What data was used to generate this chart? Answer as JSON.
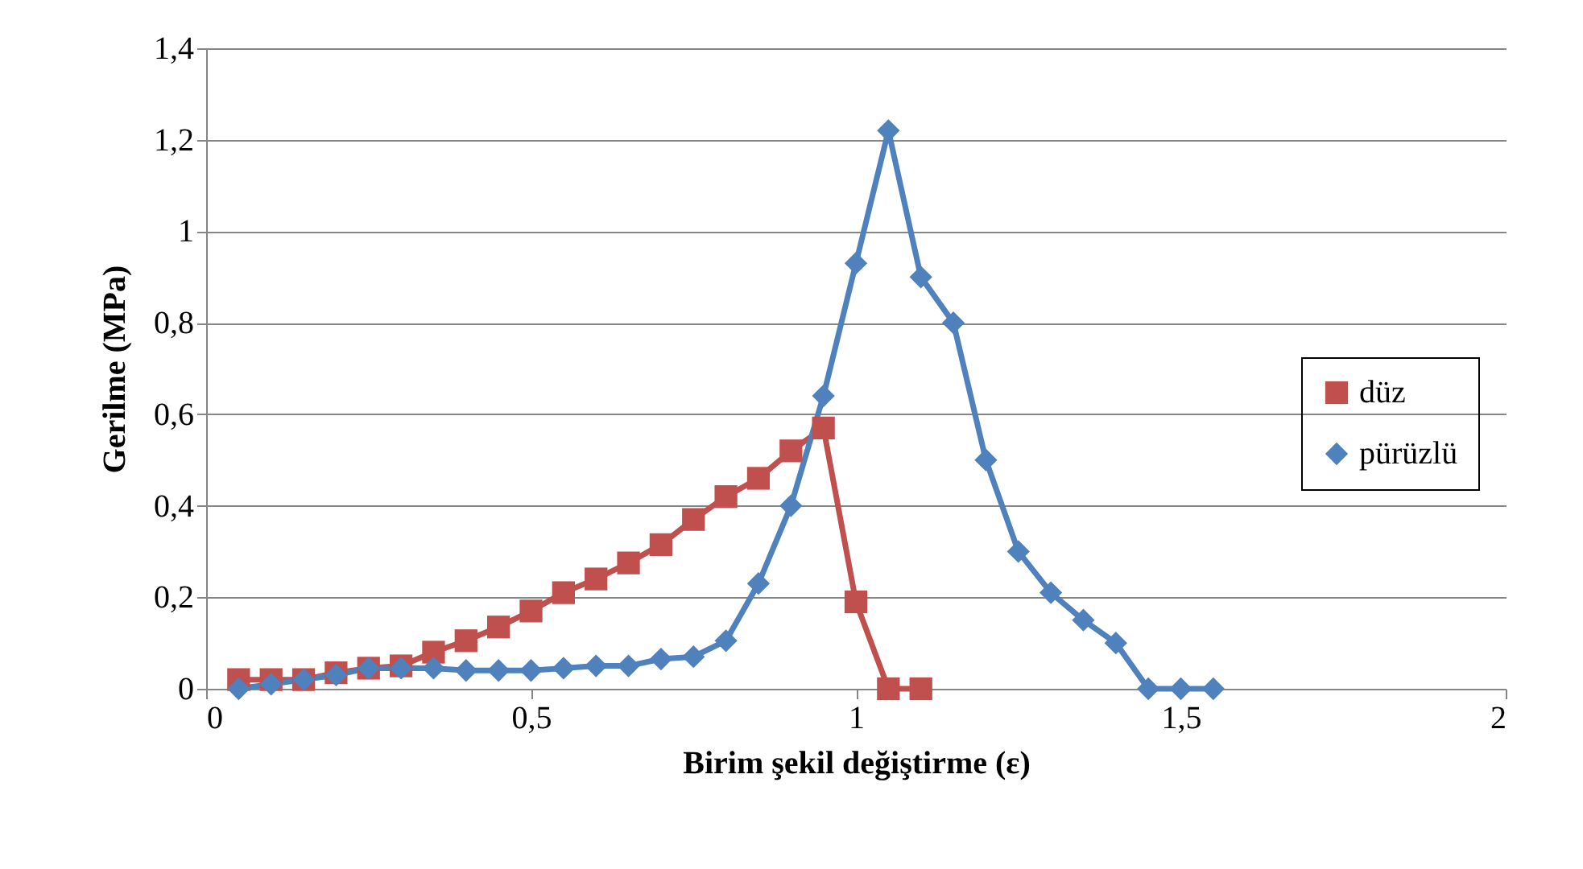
{
  "chart_data": {
    "type": "line",
    "xlabel": "Birim  şekil değiştirme  (ε)",
    "ylabel": "Gerilme   (MPa)",
    "xlim": [
      0,
      2
    ],
    "xticks": [
      0,
      {
        "value": 0.5,
        "label": "0,5"
      },
      1,
      {
        "value": 1.5,
        "label": "1,5"
      },
      2
    ],
    "ylim": [
      0,
      1.4
    ],
    "yticks": [
      0,
      {
        "value": 0.2,
        "label": "0,2"
      },
      {
        "value": 0.4,
        "label": "0,4"
      },
      {
        "value": 0.6,
        "label": "0,6"
      },
      {
        "value": 0.8,
        "label": "0,8"
      },
      1,
      {
        "value": 1.2,
        "label": "1,2"
      },
      {
        "value": 1.4,
        "label": "1,4"
      }
    ],
    "grid": "y",
    "legend": "right",
    "series": [
      {
        "name": "düz",
        "color": "#c0504d",
        "marker": "square",
        "x": [
          0.05,
          0.1,
          0.15,
          0.2,
          0.25,
          0.3,
          0.35,
          0.4,
          0.45,
          0.5,
          0.55,
          0.6,
          0.65,
          0.7,
          0.75,
          0.8,
          0.85,
          0.9,
          0.95,
          1.0,
          1.05,
          1.1
        ],
        "values": [
          0.02,
          0.02,
          0.02,
          0.035,
          0.045,
          0.05,
          0.08,
          0.105,
          0.135,
          0.17,
          0.21,
          0.24,
          0.275,
          0.315,
          0.37,
          0.42,
          0.46,
          0.52,
          0.57,
          0.19,
          0,
          0
        ]
      },
      {
        "name": "pürüzlü",
        "color": "#4f81bd",
        "marker": "diamond",
        "x": [
          0.05,
          0.1,
          0.15,
          0.2,
          0.25,
          0.3,
          0.35,
          0.4,
          0.45,
          0.5,
          0.55,
          0.6,
          0.65,
          0.7,
          0.75,
          0.8,
          0.85,
          0.9,
          0.95,
          1.0,
          1.05,
          1.1,
          1.15,
          1.2,
          1.25,
          1.3,
          1.35,
          1.4,
          1.45,
          1.5,
          1.55
        ],
        "values": [
          0,
          0.01,
          0.02,
          0.03,
          0.045,
          0.045,
          0.045,
          0.04,
          0.04,
          0.04,
          0.045,
          0.05,
          0.05,
          0.065,
          0.07,
          0.105,
          0.23,
          0.4,
          0.64,
          0.93,
          1.22,
          0.9,
          0.8,
          0.5,
          0.3,
          0.21,
          0.15,
          0.1,
          0,
          0,
          0
        ]
      }
    ]
  }
}
